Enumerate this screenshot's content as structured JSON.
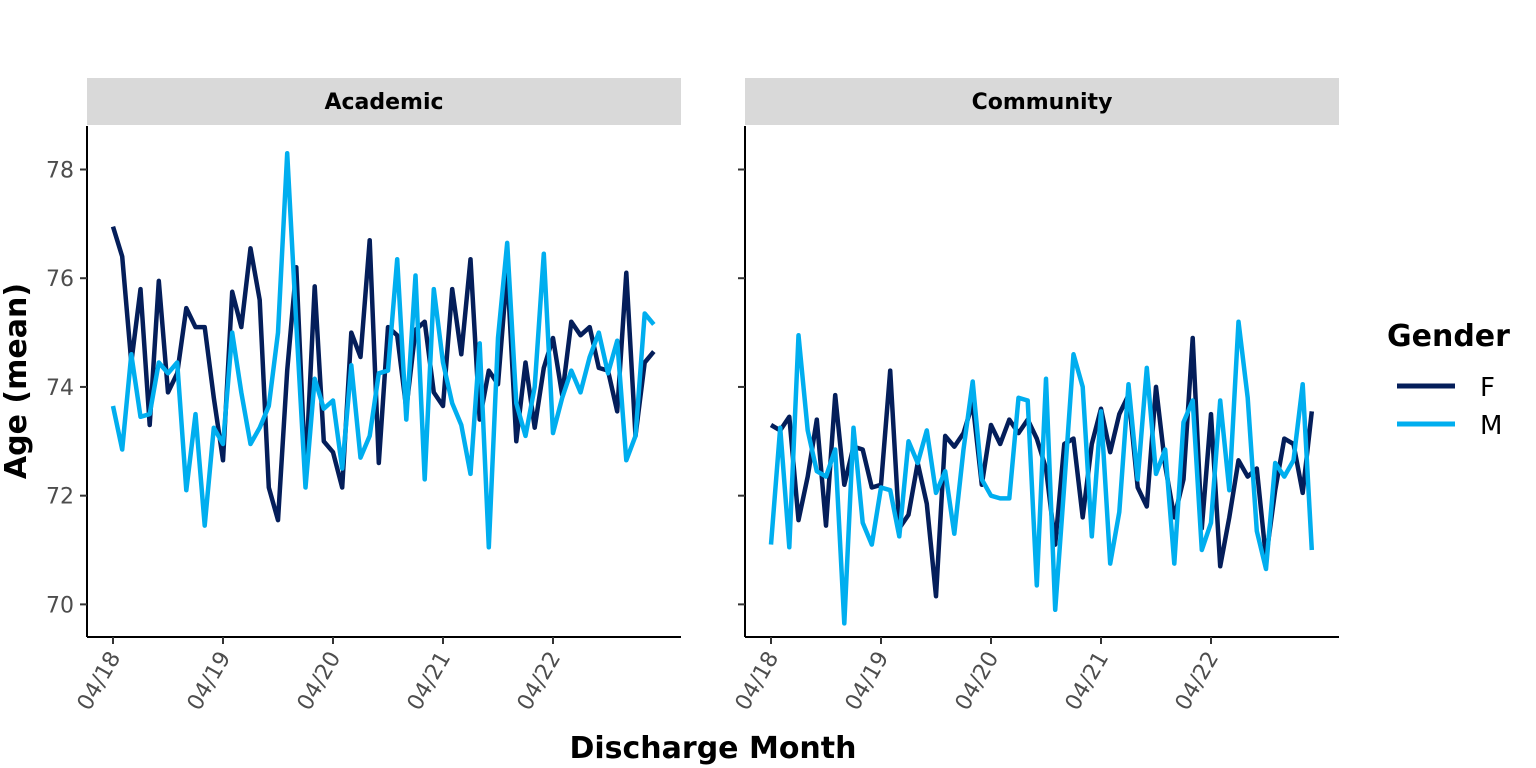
{
  "chart_data": {
    "type": "line",
    "xlabel": "Discharge Month",
    "ylabel": "Age (mean)",
    "ylim": [
      69.4,
      78.8
    ],
    "yticks": [
      70,
      72,
      74,
      76,
      78
    ],
    "x_start": "2018-04",
    "x_end": "2023-03",
    "xtick_labels": [
      "04/18",
      "04/19",
      "04/20",
      "04/21",
      "04/22"
    ],
    "legend": {
      "title": "Gender",
      "position": "right"
    },
    "series_colors": {
      "F": "#041e5a",
      "M": "#00aeef"
    },
    "facets": [
      {
        "label": "Academic",
        "series": [
          {
            "name": "F",
            "values": [
              76.95,
              76.4,
              74.45,
              75.8,
              73.3,
              75.95,
              73.9,
              74.25,
              75.45,
              75.1,
              75.1,
              73.8,
              72.65,
              75.75,
              75.1,
              76.55,
              75.6,
              72.15,
              71.55,
              74.3,
              76.2,
              72.35,
              75.85,
              73.0,
              72.8,
              72.15,
              75.0,
              74.55,
              76.7,
              72.6,
              75.1,
              74.95,
              73.6,
              75.05,
              75.2,
              73.9,
              73.65,
              75.8,
              74.6,
              76.35,
              73.4,
              74.3,
              74.05,
              76.15,
              73.0,
              74.45,
              73.25,
              74.35,
              74.9,
              73.85,
              75.2,
              74.95,
              75.1,
              74.35,
              74.3,
              73.55,
              76.1,
              73.1,
              74.45,
              74.65
            ]
          },
          {
            "name": "M",
            "values": [
              73.65,
              72.85,
              74.6,
              73.45,
              73.5,
              74.45,
              74.25,
              74.45,
              72.1,
              73.5,
              71.45,
              73.25,
              72.95,
              75.0,
              73.9,
              72.95,
              73.25,
              73.65,
              75.0,
              78.3,
              75.15,
              72.15,
              74.15,
              73.6,
              73.75,
              72.5,
              74.4,
              72.7,
              73.1,
              74.25,
              74.3,
              76.35,
              73.4,
              76.05,
              72.3,
              75.8,
              74.45,
              73.7,
              73.3,
              72.4,
              74.8,
              71.05,
              74.9,
              76.65,
              73.7,
              73.1,
              74.0,
              76.45,
              73.15,
              73.8,
              74.3,
              73.9,
              74.55,
              75.0,
              74.25,
              74.85,
              72.65,
              73.1,
              75.35,
              75.15
            ]
          }
        ]
      },
      {
        "label": "Community",
        "series": [
          {
            "name": "F",
            "values": [
              73.3,
              73.2,
              73.45,
              71.55,
              72.35,
              73.4,
              71.45,
              73.85,
              72.2,
              72.9,
              72.85,
              72.15,
              72.2,
              74.3,
              71.4,
              71.65,
              72.6,
              71.85,
              70.15,
              73.1,
              72.9,
              73.15,
              73.7,
              72.2,
              73.3,
              72.95,
              73.4,
              73.15,
              73.4,
              73.05,
              72.5,
              71.1,
              72.95,
              73.05,
              71.6,
              72.95,
              73.6,
              72.8,
              73.5,
              73.85,
              72.15,
              71.8,
              74.0,
              72.55,
              71.6,
              72.3,
              74.9,
              71.4,
              73.5,
              70.7,
              71.6,
              72.65,
              72.35,
              72.5,
              70.85,
              72.1,
              73.05,
              72.95,
              72.05,
              73.55
            ]
          },
          {
            "name": "M",
            "values": [
              71.1,
              73.25,
              71.05,
              74.95,
              73.2,
              72.45,
              72.35,
              72.85,
              69.65,
              73.25,
              71.5,
              71.1,
              72.15,
              72.1,
              71.25,
              73.0,
              72.6,
              73.2,
              72.05,
              72.45,
              71.3,
              72.85,
              74.1,
              72.3,
              72.0,
              71.95,
              71.95,
              73.8,
              73.75,
              70.35,
              74.15,
              69.9,
              72.2,
              74.6,
              74.0,
              71.25,
              73.55,
              70.75,
              71.7,
              74.05,
              72.3,
              74.35,
              72.4,
              72.85,
              70.75,
              73.35,
              73.75,
              71.0,
              71.5,
              73.75,
              72.1,
              75.2,
              73.8,
              71.35,
              70.65,
              72.6,
              72.35,
              72.65,
              74.05,
              71.0
            ]
          }
        ]
      }
    ]
  }
}
